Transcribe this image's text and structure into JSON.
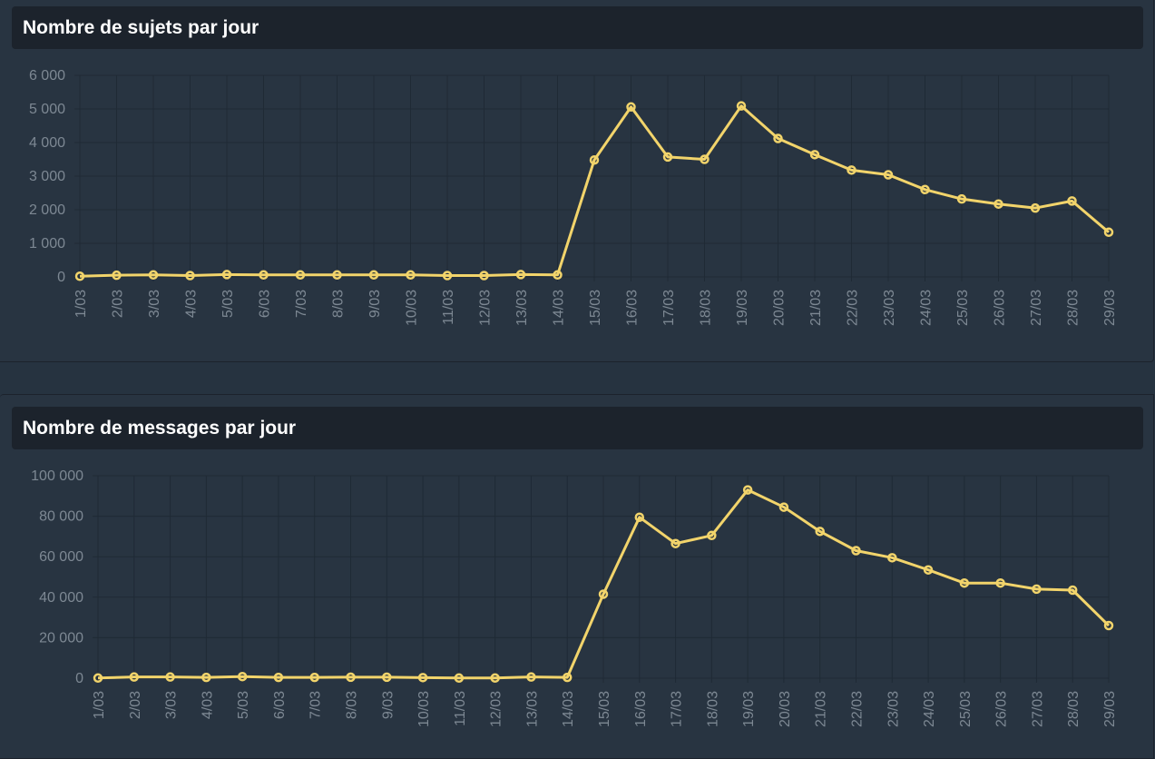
{
  "colors": {
    "background": "#263340",
    "panel": "#283441",
    "header": "#1c232c",
    "grid": "#1f2a35",
    "axis_text": "#7d8893",
    "line": "#f2d46b"
  },
  "panels": [
    {
      "title": "Nombre de sujets par jour"
    },
    {
      "title": "Nombre de messages par jour"
    }
  ],
  "chart_data": [
    {
      "type": "line",
      "title": "Nombre de sujets par jour",
      "categories": [
        "1/03",
        "2/03",
        "3/03",
        "4/03",
        "5/03",
        "6/03",
        "7/03",
        "8/03",
        "9/03",
        "10/03",
        "11/03",
        "12/03",
        "13/03",
        "14/03",
        "15/03",
        "16/03",
        "17/03",
        "18/03",
        "19/03",
        "20/03",
        "21/03",
        "22/03",
        "23/03",
        "24/03",
        "25/03",
        "26/03",
        "27/03",
        "28/03",
        "29/03"
      ],
      "series": [
        {
          "values": [
            20,
            50,
            60,
            40,
            70,
            60,
            60,
            60,
            60,
            60,
            40,
            40,
            70,
            60,
            3480,
            5060,
            3570,
            3500,
            5090,
            4120,
            3640,
            3180,
            3040,
            2600,
            2320,
            2170,
            2050,
            2260,
            1330
          ]
        }
      ],
      "ylim": [
        0,
        6000
      ],
      "yticks": [
        0,
        1000,
        2000,
        3000,
        4000,
        5000,
        6000
      ],
      "ytick_labels": [
        "0",
        "1 000",
        "2 000",
        "3 000",
        "4 000",
        "5 000",
        "6 000"
      ],
      "grid": true,
      "legend": "none"
    },
    {
      "type": "line",
      "title": "Nombre de messages par jour",
      "categories": [
        "1/03",
        "2/03",
        "3/03",
        "4/03",
        "5/03",
        "6/03",
        "7/03",
        "8/03",
        "9/03",
        "10/03",
        "11/03",
        "12/03",
        "13/03",
        "14/03",
        "15/03",
        "16/03",
        "17/03",
        "18/03",
        "19/03",
        "20/03",
        "21/03",
        "22/03",
        "23/03",
        "24/03",
        "25/03",
        "26/03",
        "27/03",
        "28/03",
        "29/03"
      ],
      "series": [
        {
          "values": [
            100,
            600,
            600,
            400,
            800,
            400,
            400,
            500,
            500,
            300,
            100,
            100,
            600,
            400,
            41500,
            79500,
            66500,
            70500,
            93000,
            84500,
            72500,
            63000,
            59500,
            53500,
            47000,
            47000,
            44000,
            43500,
            26000
          ]
        }
      ],
      "ylim": [
        0,
        100000
      ],
      "yticks": [
        0,
        20000,
        40000,
        60000,
        80000,
        100000
      ],
      "ytick_labels": [
        "0",
        "20 000",
        "40 000",
        "60 000",
        "80 000",
        "100 000"
      ],
      "grid": true,
      "legend": "none"
    }
  ]
}
